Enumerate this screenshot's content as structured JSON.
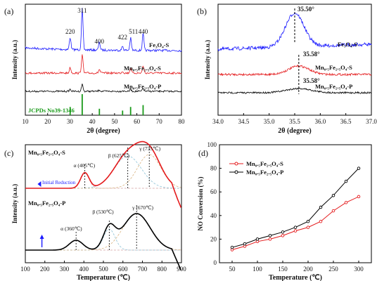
{
  "chart_data": [
    {
      "panel": "(a)",
      "type": "line",
      "xlabel": "2θ (degree)",
      "ylabel": "Intensity (a.u.)",
      "xlim": [
        10,
        80
      ],
      "xticks": [
        10,
        20,
        30,
        40,
        50,
        60,
        70,
        80
      ],
      "peak_labels": [
        {
          "text": "220",
          "x": 30.1
        },
        {
          "text": "311",
          "x": 35.5
        },
        {
          "text": "400",
          "x": 43.2
        },
        {
          "text": "422",
          "x": 53.6
        },
        {
          "text": "511",
          "x": 57.2
        },
        {
          "text": "440",
          "x": 62.8
        }
      ],
      "series": [
        {
          "name": "Fe₃O₄-S",
          "color": "#1a1aff"
        },
        {
          "name": "Mn₀.₅Fe₂.₅O₄-S",
          "color": "#e41a1c"
        },
        {
          "name": "Mn₀.₅Fe₂.₅O₄-P",
          "color": "#000000"
        }
      ],
      "reference": {
        "name": "JCPDs No39-1346",
        "color": "#1a9a1a",
        "x": [
          30.1,
          35.5,
          43.2,
          53.6,
          57.2,
          62.8
        ],
        "rel_intensity": [
          0.3,
          1.0,
          0.2,
          0.1,
          0.3,
          0.4
        ]
      }
    },
    {
      "panel": "(b)",
      "type": "line",
      "xlabel": "2θ (degree)",
      "ylabel": "Intensity (a.u.)",
      "xlim": [
        34.0,
        37.0
      ],
      "xticks": [
        "34.0",
        "34.5",
        "35.0",
        "35.5",
        "36.0",
        "36.5",
        "37.0"
      ],
      "annotations": [
        "35.50°",
        "35.58°",
        "35.58°"
      ],
      "peak_positions": [
        35.5,
        35.58,
        35.58
      ],
      "series": [
        {
          "name": "Fe₃O₄-S",
          "color": "#1a1aff"
        },
        {
          "name": "Mn₀.₅Fe₂.₅O₄-S",
          "color": "#e41a1c"
        },
        {
          "name": "Mn₀.₅Fe₂.₅O₄-P",
          "color": "#000000"
        }
      ]
    },
    {
      "panel": "(c)",
      "type": "line",
      "xlabel": "Temperature (℃)",
      "ylabel": "Intensity (a.u.)",
      "xlim": [
        100,
        900
      ],
      "xticks": [
        100,
        200,
        300,
        400,
        500,
        600,
        700,
        800,
        900
      ],
      "initial_reduction_label": "Initial Reduction",
      "samples": [
        {
          "name": "Mn₀.₅Fe₂.₅O₄-S",
          "color": "#e41a1c",
          "peaks": [
            {
              "label": "α (405℃)",
              "temp": 405
            },
            {
              "label": "β (625℃)",
              "temp": 625
            },
            {
              "label": "γ (735℃)",
              "temp": 735
            }
          ]
        },
        {
          "name": "Mn₀.₅Fe₂.₅O₄-P",
          "color": "#000000",
          "peaks": [
            {
              "label": "α (360℃)",
              "temp": 360
            },
            {
              "label": "β (530℃)",
              "temp": 530
            },
            {
              "label": "γ (670℃)",
              "temp": 670
            }
          ]
        }
      ]
    },
    {
      "panel": "(d)",
      "type": "line",
      "xlabel": "Temperature (℃)",
      "ylabel": "NO Conversion (%)",
      "xlim": [
        25,
        325
      ],
      "ylim": [
        0,
        100
      ],
      "xticks": [
        50,
        100,
        150,
        200,
        250,
        300
      ],
      "yticks": [
        0,
        20,
        40,
        60,
        80,
        100
      ],
      "x": [
        50,
        75,
        100,
        125,
        150,
        175,
        200,
        225,
        250,
        275,
        300
      ],
      "series": [
        {
          "name": "Mn₀.₅Fe₂.₅O₄-S",
          "color": "#e41a1c",
          "marker": "circle-open",
          "values": [
            11,
            14,
            18,
            20,
            23,
            27,
            30,
            35,
            44,
            51,
            56
          ]
        },
        {
          "name": "Mn₀.₅Fe₂.₅O₄-P",
          "color": "#000000",
          "marker": "circle-open",
          "values": [
            13,
            16,
            20,
            23,
            26,
            30,
            35,
            47,
            57,
            69,
            80
          ]
        }
      ]
    }
  ]
}
